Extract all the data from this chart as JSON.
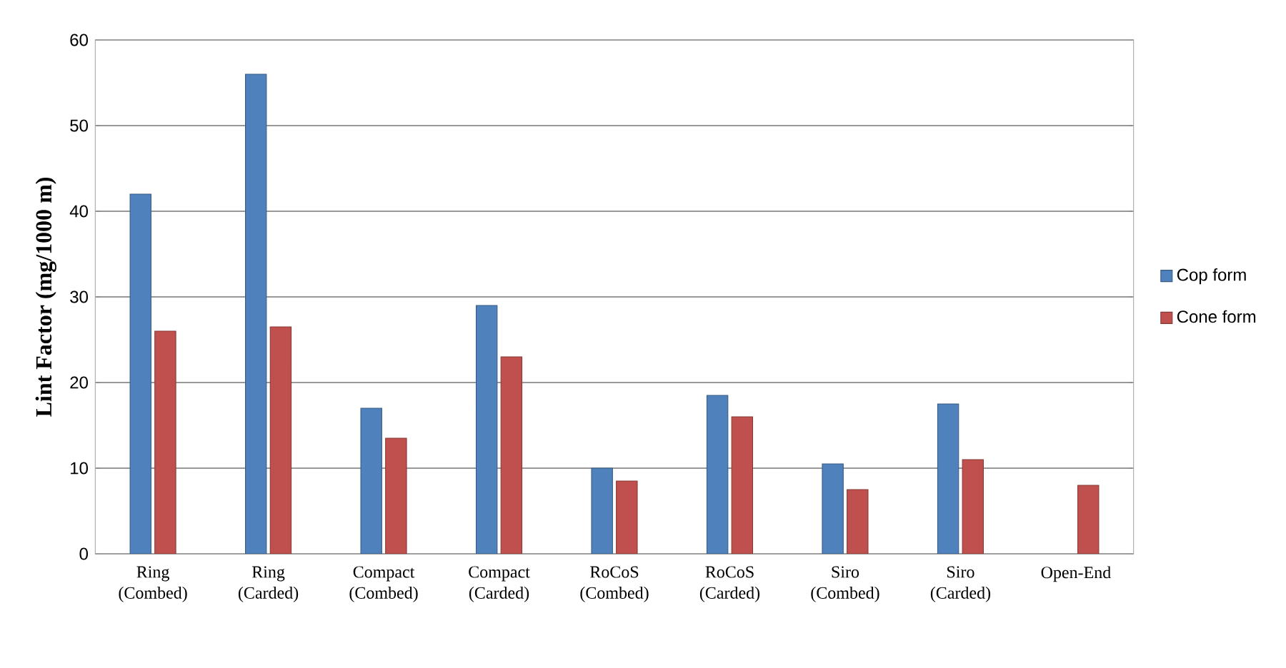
{
  "chart_data": {
    "type": "bar",
    "ylabel": "Lint Factor  (mg/1000 m)",
    "categories": [
      "Ring (Combed)",
      "Ring (Carded)",
      "Compact (Combed)",
      "Compact (Carded)",
      "RoCoS (Combed)",
      "RoCoS (Carded)",
      "Siro (Combed)",
      "Siro (Carded)",
      "Open-End"
    ],
    "series": [
      {
        "name": "Cop form",
        "color": "#4f81bd",
        "values": [
          42,
          56,
          17,
          29,
          10,
          18.5,
          10.5,
          17.5,
          null
        ]
      },
      {
        "name": "Cone form",
        "color": "#c0504d",
        "values": [
          26,
          26.5,
          13.5,
          23,
          8.5,
          16,
          7.5,
          11,
          8
        ]
      }
    ],
    "ylim": [
      0,
      60
    ],
    "yticks": [
      0,
      10,
      20,
      30,
      40,
      50,
      60
    ],
    "grid": "y",
    "legend": "right"
  }
}
